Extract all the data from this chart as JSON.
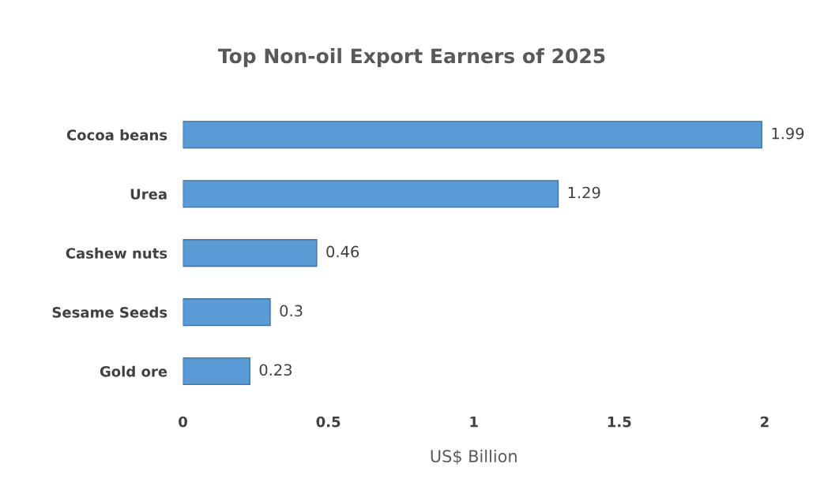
{
  "chart_data": {
    "type": "bar",
    "orientation": "horizontal",
    "title": "Top Non-oil Export Earners of 2025",
    "xlabel": "US$ Billion",
    "categories": [
      "Cocoa beans",
      "Urea",
      "Cashew nuts",
      "Sesame Seeds",
      "Gold ore"
    ],
    "values": [
      1.99,
      1.29,
      0.46,
      0.3,
      0.23
    ],
    "color": "#5b9bd5",
    "xlim": [
      0,
      2
    ],
    "xticks": [
      0,
      {
        "value": 0.5,
        "label": "0.5"
      },
      1,
      {
        "value": 1.5,
        "label": "1.5"
      },
      2
    ],
    "data_labels": true,
    "grid": false
  }
}
